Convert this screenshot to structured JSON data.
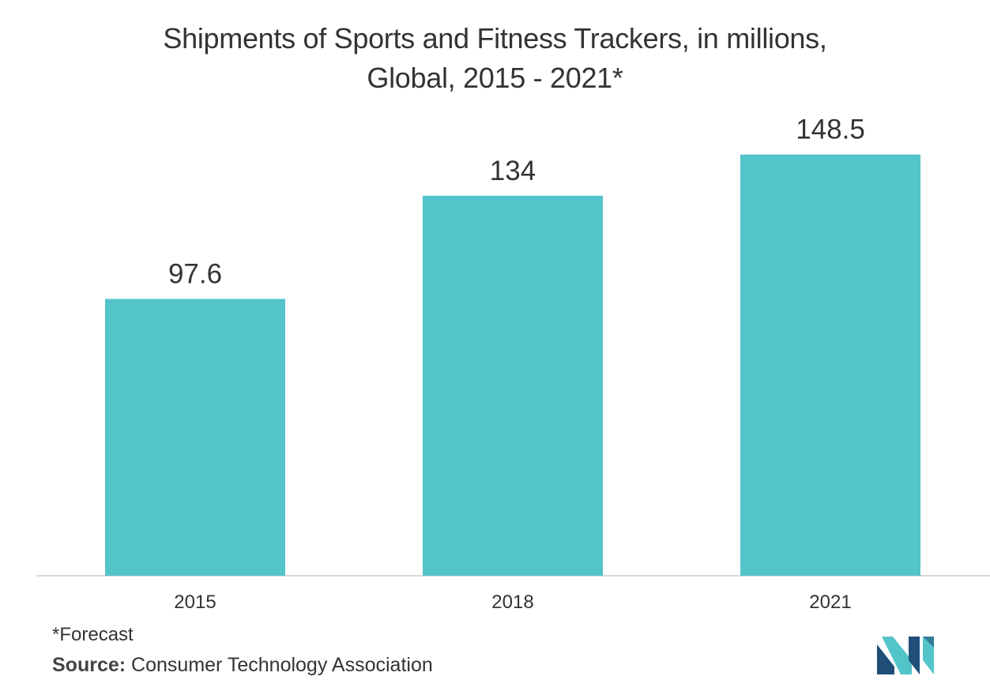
{
  "colors": {
    "bar": "#53C4CA",
    "axis": "#D9D9D9",
    "text": "#333333",
    "logo_dark": "#1F4E79",
    "logo_light": "#53C4CA"
  },
  "chart_data": {
    "type": "bar",
    "title_line1": "Shipments of Sports and Fitness Trackers, in millions,",
    "title_line2": "Global, 2015 - 2021*",
    "categories": [
      "2015",
      "2018",
      "2021"
    ],
    "values": [
      97.6,
      134,
      148.5
    ],
    "value_labels": [
      "97.6",
      "134",
      "148.5"
    ],
    "xlabel": "",
    "ylabel": "",
    "ylim": [
      0,
      160
    ],
    "grid": false,
    "legend": "none"
  },
  "footer": {
    "footnote": "*Forecast",
    "source_label": "Source:",
    "source_text": "Consumer Technology Association"
  },
  "logo": {
    "icon": "mordor-intelligence-logo-icon"
  }
}
